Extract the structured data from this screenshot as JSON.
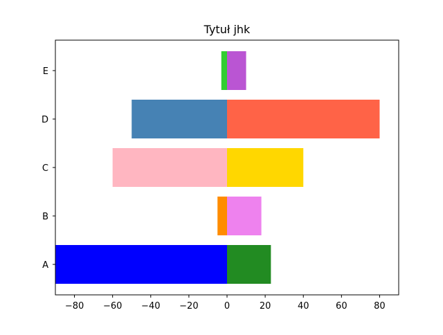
{
  "chart_data": {
    "type": "bar",
    "orientation": "horizontal",
    "title": "Tytuł jhk",
    "xlabel": "",
    "ylabel": "",
    "categories": [
      "A",
      "B",
      "C",
      "D",
      "E"
    ],
    "left_values": [
      -90,
      -5,
      -60,
      -50,
      -3
    ],
    "right_values": [
      23,
      18,
      40,
      80,
      10
    ],
    "left_colors": [
      "#0000ff",
      "#ff8c00",
      "#ffb6c1",
      "#4682b4",
      "#32cd32"
    ],
    "right_colors": [
      "#228b22",
      "#ee82ee",
      "#ffd700",
      "#ff6347",
      "#ba55d3"
    ],
    "xlim": [
      -90,
      90
    ],
    "xticks": [
      -80,
      -60,
      -40,
      -20,
      0,
      20,
      40,
      60,
      80
    ],
    "xtick_labels": [
      "−80",
      "−60",
      "−40",
      "−20",
      "0",
      "20",
      "40",
      "60",
      "80"
    ],
    "grid": false,
    "legend": "none"
  }
}
